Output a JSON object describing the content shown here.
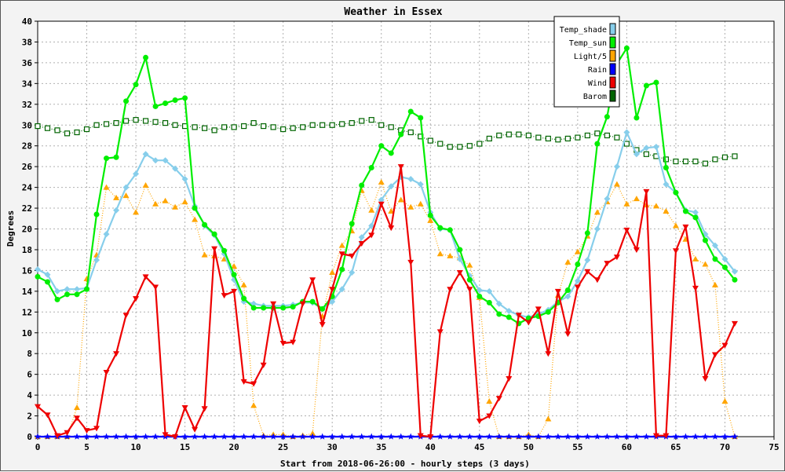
{
  "chart_data": {
    "type": "line",
    "title": "Weather in Essex",
    "xlabel": "Start from 2018-06-26:00 - hourly steps (3 days)",
    "ylabel": "Degrees",
    "xlim": [
      0,
      75
    ],
    "ylim": [
      0,
      40
    ],
    "x_ticks": [
      0,
      5,
      10,
      15,
      20,
      25,
      30,
      35,
      40,
      45,
      50,
      55,
      60,
      65,
      70,
      75
    ],
    "y_ticks": [
      0,
      2,
      4,
      6,
      8,
      10,
      12,
      14,
      16,
      18,
      20,
      22,
      24,
      26,
      28,
      30,
      32,
      34,
      36,
      38,
      40
    ],
    "grid": true,
    "legend_position": "top-right",
    "x": [
      0,
      1,
      2,
      3,
      4,
      5,
      6,
      7,
      8,
      9,
      10,
      11,
      12,
      13,
      14,
      15,
      16,
      17,
      18,
      19,
      20,
      21,
      22,
      23,
      24,
      25,
      26,
      27,
      28,
      29,
      30,
      31,
      32,
      33,
      34,
      35,
      36,
      37,
      38,
      39,
      40,
      41,
      42,
      43,
      44,
      45,
      46,
      47,
      48,
      49,
      50,
      51,
      52,
      53,
      54,
      55,
      56,
      57,
      58,
      59,
      60,
      61,
      62,
      63,
      64,
      65,
      66,
      67,
      68,
      69,
      70,
      71
    ],
    "series": [
      {
        "name": "Temp_shade",
        "color": "#87ceeb",
        "marker": "diamond",
        "style": "solid",
        "values": [
          16.1,
          15.6,
          14.0,
          14.2,
          14.2,
          14.3,
          17.0,
          19.5,
          21.8,
          24.0,
          25.3,
          27.2,
          26.6,
          26.6,
          25.8,
          24.8,
          22.2,
          20.3,
          19.4,
          17.6,
          15.1,
          13.0,
          12.8,
          12.6,
          12.6,
          12.6,
          12.7,
          12.9,
          12.9,
          12.3,
          13.0,
          14.2,
          15.8,
          19.2,
          20.3,
          22.8,
          24.1,
          25.0,
          24.8,
          24.3,
          21.6,
          20.0,
          19.9,
          17.1,
          15.5,
          14.1,
          14.0,
          12.8,
          12.1,
          11.7,
          11.5,
          11.8,
          12.2,
          13.0,
          13.5,
          15.0,
          17.0,
          20.0,
          22.9,
          26.0,
          29.3,
          27.2,
          27.8,
          27.9,
          24.3,
          23.5,
          21.8,
          21.6,
          19.5,
          18.4,
          17.1,
          15.9
        ]
      },
      {
        "name": "Temp_sun",
        "color": "#00ee00",
        "marker": "circle",
        "style": "solid",
        "values": [
          15.4,
          14.9,
          13.2,
          13.7,
          13.7,
          14.2,
          21.4,
          26.8,
          26.9,
          32.3,
          33.9,
          36.5,
          31.8,
          32.1,
          32.4,
          32.6,
          22.0,
          20.4,
          19.5,
          17.9,
          15.6,
          13.3,
          12.4,
          12.4,
          12.4,
          12.4,
          12.5,
          13.0,
          13.0,
          12.3,
          13.5,
          16.1,
          20.5,
          24.2,
          25.9,
          28.0,
          27.3,
          29.1,
          31.3,
          30.7,
          21.3,
          20.1,
          19.9,
          18.0,
          15.1,
          13.5,
          12.9,
          11.8,
          11.5,
          10.9,
          11.4,
          11.6,
          12.0,
          12.9,
          14.1,
          16.6,
          19.6,
          28.2,
          30.8,
          35.9,
          37.4,
          30.7,
          33.8,
          34.1,
          25.9,
          23.5,
          21.7,
          21.1,
          18.9,
          17.1,
          16.3,
          15.1
        ]
      },
      {
        "name": "Light/5",
        "color": "#ffa500",
        "marker": "triangle",
        "style": "dotted",
        "values": [
          0,
          0,
          0,
          0,
          2.8,
          15.2,
          17.5,
          24.0,
          23.0,
          23.2,
          21.6,
          24.2,
          22.4,
          22.7,
          22.1,
          22.6,
          20.9,
          17.5,
          17.4,
          17.1,
          16.4,
          14.6,
          3.0,
          0.1,
          0.2,
          0.2,
          0,
          0.1,
          0.3,
          11.6,
          15.8,
          18.4,
          19.8,
          23.7,
          21.8,
          24.5,
          21.7,
          22.8,
          22.1,
          22.4,
          20.8,
          17.6,
          17.4,
          17.2,
          16.5,
          13.4,
          3.4,
          0,
          0,
          0,
          0.2,
          0,
          1.7,
          13.6,
          16.8,
          17.8,
          19.3,
          21.6,
          22.6,
          24.3,
          22.4,
          22.9,
          22.3,
          22.2,
          21.7,
          20.3,
          19.0,
          17.1,
          16.6,
          14.6,
          3.4,
          0
        ]
      },
      {
        "name": "Rain",
        "color": "#0000ff",
        "marker": "star",
        "style": "solid",
        "values": [
          0,
          0,
          0,
          0,
          0,
          0,
          0,
          0,
          0,
          0,
          0,
          0,
          0,
          0,
          0,
          0,
          0,
          0,
          0,
          0,
          0,
          0,
          0,
          0,
          0,
          0,
          0,
          0,
          0,
          0,
          0,
          0,
          0,
          0,
          0,
          0,
          0,
          0,
          0,
          0,
          0,
          0,
          0,
          0,
          0,
          0,
          0,
          0,
          0,
          0,
          0,
          0,
          0,
          0,
          0,
          0,
          0,
          0,
          0,
          0,
          0,
          0,
          0,
          0,
          0,
          0,
          0,
          0,
          0,
          0,
          0,
          0
        ]
      },
      {
        "name": "Wind",
        "color": "#ee0000",
        "marker": "triangle-down",
        "style": "solid",
        "values": [
          2.9,
          2.1,
          0.1,
          0.4,
          1.8,
          0.6,
          0.8,
          6.2,
          8.0,
          11.7,
          13.3,
          15.4,
          14.4,
          0.2,
          0,
          2.8,
          0.7,
          2.7,
          18.1,
          13.6,
          14.0,
          5.3,
          5.1,
          6.9,
          12.8,
          9.0,
          9.1,
          12.8,
          15.1,
          10.8,
          14.2,
          17.6,
          17.4,
          18.6,
          19.4,
          22.4,
          20.1,
          26.0,
          16.8,
          0.1,
          0,
          10.1,
          14.2,
          15.8,
          14.2,
          1.5,
          2.0,
          3.7,
          5.6,
          11.7,
          11.0,
          12.3,
          8.0,
          14.0,
          9.9,
          14.4,
          15.9,
          15.1,
          16.7,
          17.3,
          19.9,
          18.0,
          23.6,
          0.1,
          0.1,
          17.9,
          20.2,
          14.3,
          5.6,
          7.9,
          8.8,
          10.9
        ]
      },
      {
        "name": "Barom",
        "color": "#006400",
        "marker": "square-open",
        "style": "dotted",
        "values": [
          29.9,
          29.7,
          29.5,
          29.2,
          29.3,
          29.6,
          30.0,
          30.1,
          30.2,
          30.4,
          30.5,
          30.4,
          30.3,
          30.2,
          30.0,
          29.9,
          29.8,
          29.7,
          29.5,
          29.8,
          29.8,
          29.9,
          30.2,
          29.9,
          29.8,
          29.6,
          29.7,
          29.8,
          30.0,
          30.0,
          30.0,
          30.1,
          30.2,
          30.4,
          30.5,
          30.0,
          29.8,
          29.5,
          29.3,
          28.9,
          28.5,
          28.2,
          27.9,
          27.9,
          28.0,
          28.2,
          28.7,
          29.0,
          29.1,
          29.1,
          29.0,
          28.8,
          28.7,
          28.6,
          28.7,
          28.8,
          29.0,
          29.2,
          29.0,
          28.8,
          28.2,
          27.6,
          27.2,
          27.0,
          26.7,
          26.5,
          26.5,
          26.5,
          26.3,
          26.7,
          26.9,
          27.0
        ]
      }
    ]
  }
}
